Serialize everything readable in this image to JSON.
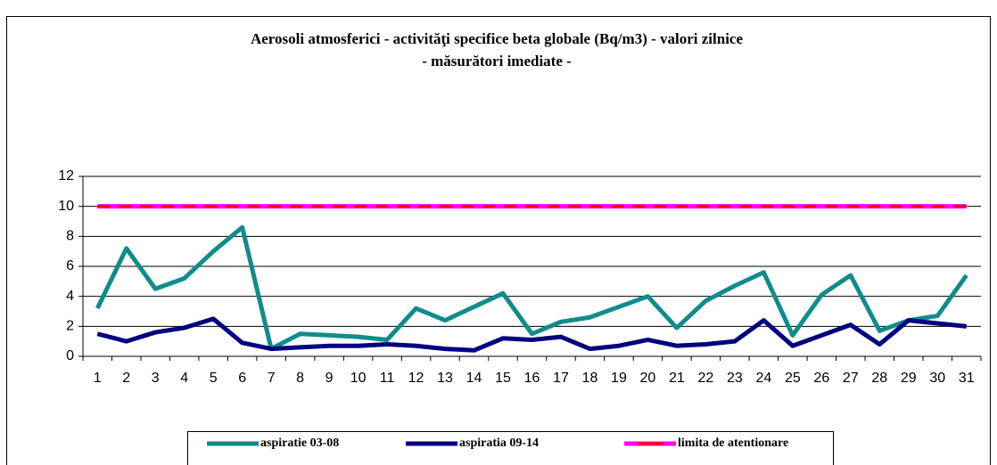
{
  "chart_data": {
    "type": "line",
    "title": "Aerosoli atmosferici - activităţi specifice beta   globale (Bq/m3) - valori zilnice",
    "subtitle": "- măsurători imediate -",
    "categories": [
      1,
      2,
      3,
      4,
      5,
      6,
      7,
      8,
      9,
      10,
      11,
      12,
      13,
      14,
      15,
      16,
      17,
      18,
      19,
      20,
      21,
      22,
      23,
      24,
      25,
      26,
      27,
      28,
      29,
      30,
      31
    ],
    "series": [
      {
        "name": "aspiratie 03-08",
        "color": "#108c8c",
        "values": [
          3.2,
          7.2,
          4.5,
          5.2,
          7.0,
          8.6,
          0.5,
          1.5,
          1.4,
          1.3,
          1.1,
          3.2,
          2.4,
          3.3,
          4.2,
          1.5,
          2.3,
          2.6,
          3.3,
          4.0,
          1.9,
          3.7,
          4.7,
          5.6,
          1.4,
          4.1,
          5.4,
          1.7,
          2.4,
          2.7,
          5.4
        ]
      },
      {
        "name": "aspiratia 09-14",
        "color": "#000080",
        "values": [
          1.5,
          1.0,
          1.6,
          1.9,
          2.5,
          0.9,
          0.5,
          0.6,
          0.7,
          0.7,
          0.8,
          0.7,
          0.5,
          0.4,
          1.2,
          1.1,
          1.3,
          0.5,
          0.7,
          1.1,
          0.7,
          0.8,
          1.0,
          2.4,
          0.7,
          1.4,
          2.1,
          0.8,
          2.4,
          2.2,
          2.0
        ]
      },
      {
        "name": "limita de atentionare",
        "color": "#ff00ff",
        "dash_color": "#ff0000",
        "values": [
          10,
          10,
          10,
          10,
          10,
          10,
          10,
          10,
          10,
          10,
          10,
          10,
          10,
          10,
          10,
          10,
          10,
          10,
          10,
          10,
          10,
          10,
          10,
          10,
          10,
          10,
          10,
          10,
          10,
          10,
          10
        ]
      }
    ],
    "ylim": [
      0,
      12
    ],
    "yticks": [
      0,
      2,
      4,
      6,
      8,
      10,
      12
    ],
    "grid": true
  }
}
